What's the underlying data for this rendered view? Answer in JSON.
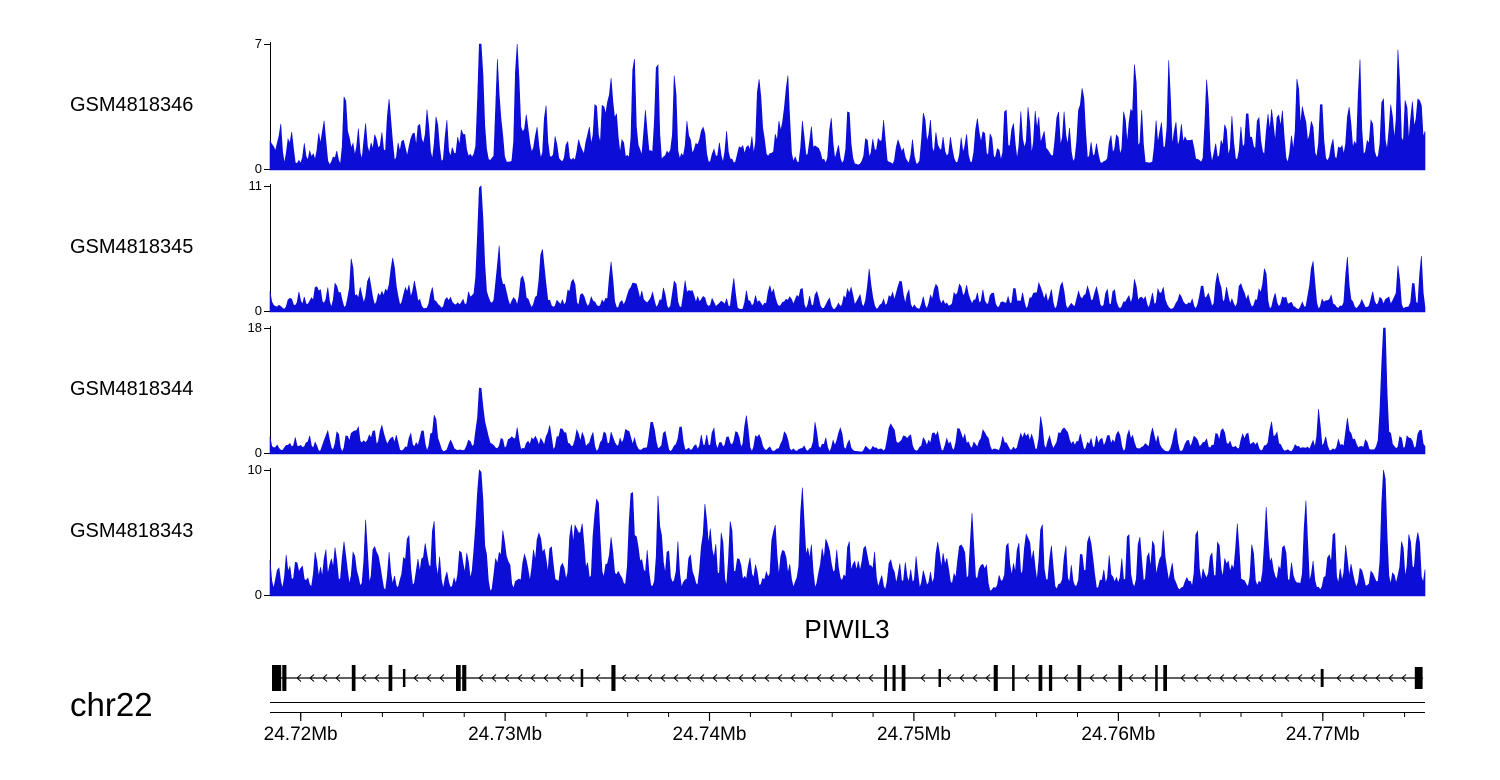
{
  "figure": {
    "chromosome_label": "chr22",
    "gene": {
      "name": "PIWIL3",
      "strand": "-",
      "start": 24.7186,
      "end": 24.7749,
      "exons": [
        [
          24.7186,
          24.71905,
          26
        ],
        [
          24.7191,
          24.7193,
          26
        ],
        [
          24.7225,
          24.72268,
          26
        ],
        [
          24.7243,
          24.72448,
          26
        ],
        [
          24.725,
          24.72512,
          18
        ],
        [
          24.7276,
          24.72783,
          26
        ],
        [
          24.7279,
          24.7281,
          26
        ],
        [
          24.7337,
          24.73382,
          18
        ],
        [
          24.7352,
          24.7354,
          26
        ],
        [
          24.74855,
          24.74868,
          26
        ],
        [
          24.74895,
          24.7491,
          26
        ],
        [
          24.7494,
          24.74958,
          26
        ],
        [
          24.7512,
          24.75132,
          18
        ],
        [
          24.7539,
          24.7541,
          26
        ],
        [
          24.7548,
          24.75492,
          26
        ],
        [
          24.7561,
          24.75628,
          26
        ],
        [
          24.7566,
          24.75676,
          26
        ],
        [
          24.758,
          24.75818,
          26
        ],
        [
          24.76,
          24.76018,
          26
        ],
        [
          24.7618,
          24.76192,
          26
        ],
        [
          24.7622,
          24.76238,
          26
        ],
        [
          24.7699,
          24.77004,
          18
        ],
        [
          24.7745,
          24.77488,
          22
        ]
      ]
    },
    "colors": {
      "track_fill": "#0d0dd8",
      "axis": "#000000"
    },
    "x_axis": {
      "unit": "Mb",
      "range": [
        24.7185,
        24.775
      ],
      "ticks": [
        24.72,
        24.73,
        24.74,
        24.75,
        24.76,
        24.77
      ],
      "tick_labels": [
        "24.72Mb",
        "24.73Mb",
        "24.74Mb",
        "24.75Mb",
        "24.76Mb",
        "24.77Mb"
      ],
      "minor_tick_step": 0.002
    }
  },
  "chart_data": {
    "type": "area",
    "unit": "Mb",
    "x_range_mb": [
      24.7185,
      24.775
    ],
    "tracks": [
      {
        "name": "GSM4818346",
        "ymax": 7,
        "y_labels": [
          "0",
          "7"
        ],
        "noise": 1.3,
        "seed": 101,
        "regions": [
          [
            24.754,
            24.775,
            1.3
          ],
          [
            24.733,
            24.7395,
            1.25
          ]
        ],
        "peaks": [
          [
            24.7222,
            2.6,
            0.00012
          ],
          [
            24.7243,
            3.4,
            0.00012
          ],
          [
            24.7262,
            2.9,
            0.0001
          ],
          [
            24.7288,
            7.0,
            0.00016
          ],
          [
            24.7296,
            4.0,
            0.0001
          ],
          [
            24.7306,
            4.2,
            0.00012
          ],
          [
            24.732,
            3.0,
            0.0001
          ],
          [
            24.7352,
            3.8,
            0.00014
          ],
          [
            24.7363,
            3.0,
            0.0001
          ],
          [
            24.7374,
            4.2,
            0.00012
          ],
          [
            24.7383,
            3.8,
            0.0001
          ],
          [
            24.7424,
            3.0,
            0.00012
          ],
          [
            24.7438,
            2.5,
            0.0001
          ],
          [
            24.7468,
            2.3,
            0.0001
          ],
          [
            24.7508,
            2.5,
            0.0001
          ],
          [
            24.7545,
            2.4,
            0.0001
          ],
          [
            24.7582,
            3.0,
            0.00012
          ],
          [
            24.7608,
            3.2,
            0.0001
          ],
          [
            24.7625,
            3.4,
            0.0001
          ],
          [
            24.7643,
            3.0,
            0.0001
          ],
          [
            24.7663,
            2.9,
            0.0001
          ],
          [
            24.7688,
            3.2,
            0.0001
          ],
          [
            24.7718,
            5.4,
            0.0001
          ],
          [
            24.7737,
            4.8,
            0.0001
          ],
          [
            24.7748,
            2.6,
            0.0001
          ]
        ]
      },
      {
        "name": "GSM4818345",
        "ymax": 11,
        "y_labels": [
          "0",
          "11"
        ],
        "noise": 1.0,
        "seed": 202,
        "regions": [
          [
            24.72,
            24.732,
            1.15
          ]
        ],
        "peaks": [
          [
            24.7225,
            2.2,
            0.0001
          ],
          [
            24.7245,
            2.9,
            0.00012
          ],
          [
            24.7288,
            11.0,
            0.0002
          ],
          [
            24.7297,
            4.5,
            0.0001
          ],
          [
            24.7318,
            2.4,
            0.0001
          ],
          [
            24.7333,
            2.0,
            0.0001
          ],
          [
            24.7352,
            2.3,
            0.0001
          ],
          [
            24.7388,
            2.5,
            0.0001
          ],
          [
            24.7412,
            2.1,
            0.0001
          ],
          [
            24.7445,
            1.9,
            0.0001
          ],
          [
            24.7478,
            1.8,
            0.0001
          ],
          [
            24.7522,
            1.9,
            0.0001
          ],
          [
            24.7561,
            2.1,
            0.0001
          ],
          [
            24.7585,
            1.8,
            0.0001
          ],
          [
            24.7608,
            2.1,
            0.0001
          ],
          [
            24.7648,
            2.3,
            0.0001
          ],
          [
            24.7672,
            2.2,
            0.0001
          ],
          [
            24.7695,
            2.8,
            0.0001
          ],
          [
            24.7712,
            3.2,
            0.0001
          ],
          [
            24.7737,
            3.7,
            0.0001
          ],
          [
            24.7748,
            3.0,
            0.0001
          ]
        ]
      },
      {
        "name": "GSM4818344",
        "ymax": 18,
        "y_labels": [
          "0",
          "18"
        ],
        "noise": 1.4,
        "seed": 303,
        "regions": [],
        "peaks": [
          [
            24.7228,
            3.2,
            0.0001
          ],
          [
            24.724,
            2.8,
            0.0001
          ],
          [
            24.7266,
            3.5,
            0.00012
          ],
          [
            24.7288,
            8.5,
            0.00016
          ],
          [
            24.7306,
            3.2,
            0.0001
          ],
          [
            24.7322,
            2.8,
            0.0001
          ],
          [
            24.7352,
            2.7,
            0.0001
          ],
          [
            24.7372,
            3.0,
            0.0001
          ],
          [
            24.7386,
            3.3,
            0.0001
          ],
          [
            24.7402,
            3.2,
            0.0001
          ],
          [
            24.7418,
            3.8,
            0.00012
          ],
          [
            24.7452,
            2.2,
            0.0001
          ],
          [
            24.7488,
            2.5,
            0.0001
          ],
          [
            24.7522,
            2.2,
            0.0001
          ],
          [
            24.7562,
            2.7,
            0.0001
          ],
          [
            24.7605,
            2.9,
            0.0001
          ],
          [
            24.7628,
            3.3,
            0.0001
          ],
          [
            24.7648,
            2.7,
            0.0001
          ],
          [
            24.7675,
            2.5,
            0.0001
          ],
          [
            24.7698,
            3.4,
            0.0001
          ],
          [
            24.7712,
            4.2,
            0.0001
          ],
          [
            24.773,
            18.0,
            0.00016
          ],
          [
            24.7748,
            2.8,
            0.0001
          ]
        ]
      },
      {
        "name": "GSM4818343",
        "ymax": 10,
        "y_labels": [
          "0",
          "10"
        ],
        "noise": 1.8,
        "seed": 404,
        "regions": [
          [
            24.7325,
            24.746,
            1.25
          ]
        ],
        "peaks": [
          [
            24.7212,
            2.4,
            0.0001
          ],
          [
            24.7232,
            3.0,
            0.0001
          ],
          [
            24.7252,
            3.2,
            0.0001
          ],
          [
            24.7265,
            5.8,
            0.00012
          ],
          [
            24.7278,
            3.2,
            0.0001
          ],
          [
            24.7288,
            8.2,
            0.00016
          ],
          [
            24.7299,
            4.4,
            0.0001
          ],
          [
            24.7316,
            4.2,
            0.0001
          ],
          [
            24.7332,
            4.4,
            0.00012
          ],
          [
            24.7345,
            3.8,
            0.0001
          ],
          [
            24.7362,
            5.2,
            0.00014
          ],
          [
            24.7375,
            4.4,
            0.0001
          ],
          [
            24.7398,
            4.3,
            0.00016
          ],
          [
            24.741,
            4.0,
            0.0001
          ],
          [
            24.7432,
            5.0,
            0.00012
          ],
          [
            24.7445,
            3.5,
            0.0001
          ],
          [
            24.7468,
            2.9,
            0.0001
          ],
          [
            24.7512,
            3.5,
            0.00012
          ],
          [
            24.7528,
            3.1,
            0.0001
          ],
          [
            24.7562,
            3.7,
            0.00012
          ],
          [
            24.7585,
            3.3,
            0.0001
          ],
          [
            24.7605,
            4.1,
            0.0001
          ],
          [
            24.7622,
            4.7,
            0.0001
          ],
          [
            24.7638,
            3.5,
            0.0001
          ],
          [
            24.7658,
            4.9,
            0.0001
          ],
          [
            24.7672,
            3.3,
            0.0001
          ],
          [
            24.7692,
            3.9,
            0.0001
          ],
          [
            24.7705,
            3.3,
            0.0001
          ],
          [
            24.773,
            10.0,
            0.00016
          ],
          [
            24.7742,
            3.8,
            0.0001
          ]
        ]
      }
    ]
  }
}
